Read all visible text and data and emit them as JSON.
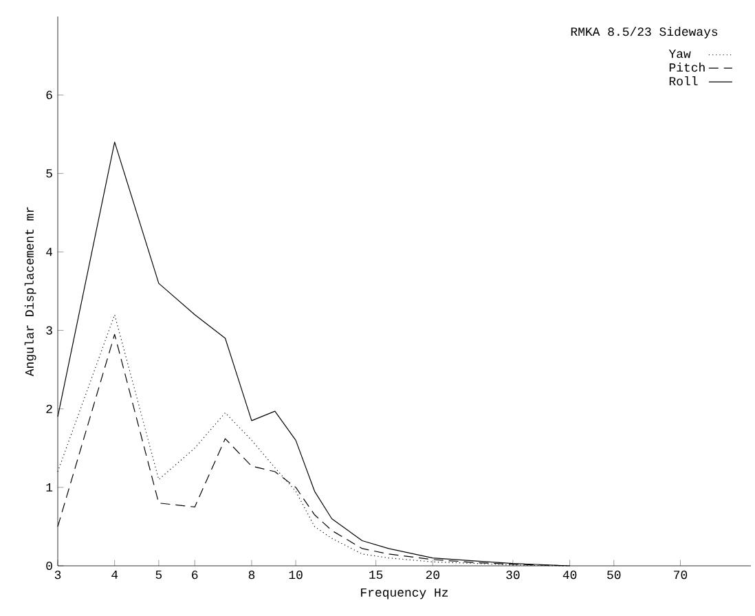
{
  "chart_data": {
    "type": "line",
    "xlabel": "Frequency Hz",
    "ylabel": "Angular Displacement mr",
    "legend_title": "RMKA 8.5/23  Sideways",
    "x": [
      3,
      4,
      5,
      6,
      7,
      8,
      9,
      10,
      11,
      12,
      14,
      16,
      20,
      25,
      30,
      40
    ],
    "series": [
      {
        "name": "Yaw",
        "color": "#000000",
        "line_style": "dotted",
        "values": [
          1.2,
          3.2,
          1.1,
          1.5,
          1.95,
          1.6,
          1.25,
          0.95,
          0.5,
          0.35,
          0.15,
          0.1,
          0.05,
          0.03,
          0.01,
          0
        ]
      },
      {
        "name": "Pitch",
        "color": "#000000",
        "line_style": "dashed",
        "values": [
          0.5,
          2.95,
          0.8,
          0.75,
          1.62,
          1.27,
          1.2,
          1.0,
          0.65,
          0.45,
          0.22,
          0.15,
          0.08,
          0.04,
          0.02,
          0
        ]
      },
      {
        "name": "Roll",
        "color": "#000000",
        "line_style": "solid",
        "values": [
          1.9,
          5.4,
          3.6,
          3.2,
          2.9,
          1.85,
          1.97,
          1.6,
          0.95,
          0.6,
          0.32,
          0.22,
          0.1,
          0.06,
          0.03,
          0
        ]
      }
    ],
    "log": "x",
    "xlim": [
      3,
      100
    ],
    "ylim": [
      0,
      7
    ],
    "xticks": [
      3,
      4,
      5,
      6,
      8,
      10,
      15,
      20,
      30,
      40,
      50,
      70
    ],
    "yticks": [
      0,
      1,
      2,
      3,
      4,
      5,
      6
    ],
    "grid": false,
    "legend": "top right",
    "marker": "none"
  }
}
